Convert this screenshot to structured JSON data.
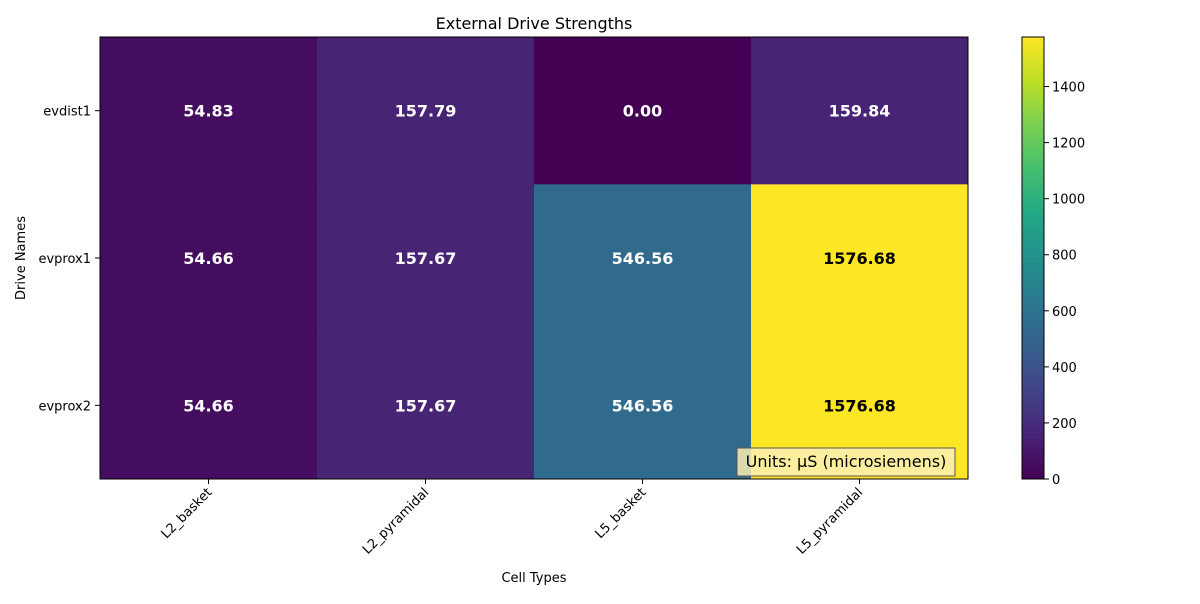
{
  "chart_data": {
    "type": "heatmap",
    "title": "External Drive Strengths",
    "xlabel": "Cell Types",
    "ylabel": "Drive Names",
    "x_categories": [
      "L2_basket",
      "L2_pyramidal",
      "L5_basket",
      "L5_pyramidal"
    ],
    "y_categories": [
      "evdist1",
      "evprox1",
      "evprox2"
    ],
    "values": [
      [
        54.83,
        157.79,
        0.0,
        159.84
      ],
      [
        54.66,
        157.67,
        546.56,
        1576.68
      ],
      [
        54.66,
        157.67,
        546.56,
        1576.68
      ]
    ],
    "value_labels": [
      [
        "54.83",
        "157.79",
        "0.00",
        "159.84"
      ],
      [
        "54.66",
        "157.67",
        "546.56",
        "1576.68"
      ],
      [
        "54.66",
        "157.67",
        "546.56",
        "1576.68"
      ]
    ],
    "colormap": "viridis",
    "vmin": 0,
    "vmax": 1576.68,
    "colorbar_ticks": [
      0,
      200,
      400,
      600,
      800,
      1000,
      1200,
      1400
    ],
    "colorbar_tick_labels": [
      "0",
      "200",
      "400",
      "600",
      "800",
      "1000",
      "1200",
      "1400"
    ],
    "annotation": "Units: μS (microsiemens)",
    "annotation_placement": "bottom-right",
    "grid": false
  }
}
